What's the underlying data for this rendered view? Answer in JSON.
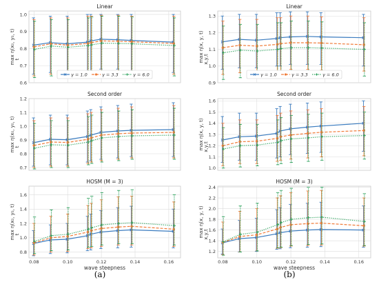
{
  "figure": {
    "label_left": "(a)",
    "label_right": "(b)"
  },
  "colors": {
    "series1": "#3a7bbf",
    "series2": "#f07c3a",
    "series3": "#2aa05a",
    "grid": "#dcdcdc",
    "frame": "#c8c8c8"
  },
  "legend_entries": [
    "γ = 1.0",
    "γ = 3.3",
    "γ = 6.0"
  ],
  "chart_data": [
    {
      "type": "line",
      "title": "Linear",
      "xlabel": "",
      "ylabel": "max η(x₀, y₀, t)",
      "ylabel_parts": {
        "main": "max η(x₀, y₀, t)",
        "sub": "t"
      },
      "xlim": [
        0.077,
        0.167
      ],
      "ylim": [
        0.6,
        1.02
      ],
      "yticks": [
        0.6,
        0.7,
        0.8,
        0.9,
        1.0
      ],
      "yticklabels": [
        "0.6",
        "0.7",
        "0.8",
        "0.9",
        "1.0"
      ],
      "xticks": [
        0.08,
        0.1,
        0.12,
        0.14,
        0.16
      ],
      "xticklabels": [],
      "grid": true,
      "legend": "bottom",
      "x": [
        0.08,
        0.09,
        0.1,
        0.112,
        0.114,
        0.12,
        0.13,
        0.138,
        0.163
      ],
      "series": [
        {
          "name": "γ = 1.0",
          "style": "solid",
          "marker": "x",
          "values": [
            0.82,
            0.835,
            0.828,
            0.838,
            0.845,
            0.855,
            0.852,
            0.848,
            0.838
          ],
          "err_lo": [
            0.65,
            0.66,
            0.66,
            0.67,
            0.67,
            0.68,
            0.68,
            0.67,
            0.66
          ],
          "err_hi": [
            0.98,
            0.99,
            0.99,
            1.0,
            1.0,
            1.0,
            1.0,
            1.0,
            1.0
          ]
        },
        {
          "name": "γ = 3.3",
          "style": "dashed",
          "marker": "o",
          "values": [
            0.81,
            0.828,
            0.82,
            0.83,
            0.835,
            0.845,
            0.843,
            0.84,
            0.83
          ],
          "err_lo": [
            0.64,
            0.65,
            0.65,
            0.66,
            0.66,
            0.67,
            0.67,
            0.66,
            0.65
          ],
          "err_hi": [
            0.97,
            0.98,
            0.98,
            0.99,
            0.99,
            0.995,
            0.995,
            0.99,
            0.99
          ]
        },
        {
          "name": "γ = 6.0",
          "style": "dotted",
          "marker": "+",
          "values": [
            0.795,
            0.815,
            0.808,
            0.818,
            0.822,
            0.832,
            0.83,
            0.828,
            0.818
          ],
          "err_lo": [
            0.63,
            0.64,
            0.64,
            0.65,
            0.65,
            0.66,
            0.66,
            0.65,
            0.64
          ],
          "err_hi": [
            0.96,
            0.97,
            0.97,
            0.98,
            0.985,
            0.99,
            0.99,
            0.985,
            0.98
          ]
        }
      ]
    },
    {
      "type": "line",
      "title": "Linear",
      "xlabel": "",
      "ylabel": "max η(x, y, t)",
      "ylabel_parts": {
        "main": "max η(x, y, t)",
        "sub": "x,y,t"
      },
      "xlim": [
        0.077,
        0.167
      ],
      "ylim": [
        0.9,
        1.33
      ],
      "yticks": [
        0.9,
        1.0,
        1.1,
        1.2,
        1.3
      ],
      "yticklabels": [
        "0.9",
        "1.0",
        "1.1",
        "1.2",
        "1.3"
      ],
      "xticks": [
        0.08,
        0.1,
        0.12,
        0.14,
        0.16
      ],
      "xticklabels": [],
      "grid": true,
      "legend": "bottom",
      "x": [
        0.08,
        0.09,
        0.1,
        0.112,
        0.114,
        0.12,
        0.13,
        0.138,
        0.163
      ],
      "series": [
        {
          "name": "γ = 1.0",
          "style": "solid",
          "marker": "x",
          "values": [
            1.145,
            1.16,
            1.155,
            1.165,
            1.17,
            1.175,
            1.178,
            1.175,
            1.17
          ],
          "err_lo": [
            0.98,
            0.99,
            0.99,
            1.0,
            1.0,
            1.01,
            1.01,
            1.01,
            1.0
          ],
          "err_hi": [
            1.3,
            1.31,
            1.31,
            1.32,
            1.32,
            1.325,
            1.325,
            1.32,
            1.31
          ]
        },
        {
          "name": "γ = 3.3",
          "style": "dashed",
          "marker": "o",
          "values": [
            1.11,
            1.125,
            1.12,
            1.13,
            1.135,
            1.14,
            1.14,
            1.138,
            1.128
          ],
          "err_lo": [
            0.95,
            0.96,
            0.96,
            0.97,
            0.97,
            0.98,
            0.98,
            0.975,
            0.97
          ],
          "err_hi": [
            1.27,
            1.28,
            1.28,
            1.29,
            1.29,
            1.3,
            1.3,
            1.295,
            1.29
          ]
        },
        {
          "name": "γ = 6.0",
          "style": "dotted",
          "marker": "+",
          "values": [
            1.08,
            1.095,
            1.09,
            1.1,
            1.105,
            1.11,
            1.11,
            1.108,
            1.1
          ],
          "err_lo": [
            0.92,
            0.93,
            0.93,
            0.94,
            0.94,
            0.95,
            0.95,
            0.945,
            0.94
          ],
          "err_hi": [
            1.24,
            1.25,
            1.25,
            1.26,
            1.26,
            1.27,
            1.27,
            1.265,
            1.26
          ]
        }
      ]
    },
    {
      "type": "line",
      "title": "Second order",
      "xlabel": "",
      "ylabel": "max η(x₀, y₀, t)",
      "ylabel_parts": {
        "main": "max η(x₀, y₀, t)",
        "sub": "t"
      },
      "xlim": [
        0.077,
        0.167
      ],
      "ylim": [
        0.68,
        1.2
      ],
      "yticks": [
        0.7,
        0.8,
        0.9,
        1.0,
        1.1,
        1.2
      ],
      "yticklabels": [
        "0.7",
        "0.8",
        "0.9",
        "1.0",
        "1.1",
        "1.2"
      ],
      "xticks": [
        0.08,
        0.1,
        0.12,
        0.14,
        0.16
      ],
      "xticklabels": [],
      "grid": true,
      "legend": "none",
      "x": [
        0.08,
        0.09,
        0.1,
        0.112,
        0.114,
        0.12,
        0.13,
        0.138,
        0.163
      ],
      "series": [
        {
          "name": "γ = 1.0",
          "style": "solid",
          "marker": "x",
          "values": [
            0.88,
            0.905,
            0.902,
            0.925,
            0.935,
            0.955,
            0.965,
            0.97,
            0.975
          ],
          "err_lo": [
            0.71,
            0.72,
            0.72,
            0.74,
            0.75,
            0.76,
            0.77,
            0.78,
            0.78
          ],
          "err_hi": [
            1.06,
            1.08,
            1.08,
            1.11,
            1.12,
            1.14,
            1.15,
            1.16,
            1.17
          ]
        },
        {
          "name": "γ = 3.3",
          "style": "dashed",
          "marker": "o",
          "values": [
            0.86,
            0.885,
            0.882,
            0.905,
            0.915,
            0.935,
            0.945,
            0.95,
            0.955
          ],
          "err_lo": [
            0.7,
            0.71,
            0.71,
            0.73,
            0.74,
            0.75,
            0.76,
            0.77,
            0.77
          ],
          "err_hi": [
            1.04,
            1.06,
            1.06,
            1.09,
            1.1,
            1.12,
            1.13,
            1.14,
            1.15
          ]
        },
        {
          "name": "γ = 6.0",
          "style": "dotted",
          "marker": "+",
          "values": [
            0.84,
            0.865,
            0.862,
            0.885,
            0.895,
            0.915,
            0.925,
            0.93,
            0.935
          ],
          "err_lo": [
            0.69,
            0.7,
            0.7,
            0.72,
            0.73,
            0.74,
            0.75,
            0.76,
            0.76
          ],
          "err_hi": [
            1.02,
            1.04,
            1.04,
            1.07,
            1.08,
            1.1,
            1.11,
            1.12,
            1.13
          ]
        }
      ]
    },
    {
      "type": "line",
      "title": "Second order",
      "xlabel": "",
      "ylabel": "max η(x, y, t)",
      "ylabel_parts": {
        "main": "max η(x, y, t)",
        "sub": "x,y,t"
      },
      "xlim": [
        0.077,
        0.167
      ],
      "ylim": [
        0.98,
        1.62
      ],
      "yticks": [
        1.0,
        1.1,
        1.2,
        1.3,
        1.4,
        1.5,
        1.6
      ],
      "yticklabels": [
        "1.0",
        "1.1",
        "1.2",
        "1.3",
        "1.4",
        "1.5",
        "1.6"
      ],
      "xticks": [
        0.08,
        0.1,
        0.12,
        0.14,
        0.16
      ],
      "xticklabels": [],
      "grid": true,
      "legend": "none",
      "x": [
        0.08,
        0.09,
        0.1,
        0.112,
        0.114,
        0.12,
        0.13,
        0.138,
        0.163
      ],
      "series": [
        {
          "name": "γ = 1.0",
          "style": "solid",
          "marker": "x",
          "values": [
            1.25,
            1.28,
            1.285,
            1.31,
            1.33,
            1.35,
            1.365,
            1.375,
            1.4
          ],
          "err_lo": [
            1.05,
            1.07,
            1.07,
            1.09,
            1.1,
            1.12,
            1.13,
            1.14,
            1.15
          ],
          "err_hi": [
            1.46,
            1.49,
            1.49,
            1.53,
            1.55,
            1.57,
            1.58,
            1.59,
            1.6
          ]
        },
        {
          "name": "γ = 3.3",
          "style": "dashed",
          "marker": "o",
          "values": [
            1.2,
            1.235,
            1.24,
            1.265,
            1.28,
            1.295,
            1.31,
            1.32,
            1.335
          ],
          "err_lo": [
            1.02,
            1.04,
            1.04,
            1.06,
            1.07,
            1.08,
            1.09,
            1.1,
            1.11
          ],
          "err_hi": [
            1.4,
            1.43,
            1.43,
            1.47,
            1.49,
            1.51,
            1.52,
            1.53,
            1.55
          ]
        },
        {
          "name": "γ = 6.0",
          "style": "dotted",
          "marker": "+",
          "values": [
            1.17,
            1.2,
            1.205,
            1.23,
            1.245,
            1.26,
            1.27,
            1.28,
            1.29
          ],
          "err_lo": [
            1.0,
            1.01,
            1.02,
            1.03,
            1.04,
            1.05,
            1.06,
            1.07,
            1.08
          ],
          "err_hi": [
            1.36,
            1.39,
            1.39,
            1.43,
            1.45,
            1.47,
            1.48,
            1.49,
            1.5
          ]
        }
      ]
    },
    {
      "type": "line",
      "title": "HOSM (M = 3)",
      "xlabel": "wave steepness",
      "ylabel": "max η(x₀, y₀, t)",
      "ylabel_parts": {
        "main": "max η(x₀, y₀, t)",
        "sub": "t"
      },
      "xlim": [
        0.077,
        0.167
      ],
      "ylim": [
        0.72,
        1.72
      ],
      "yticks": [
        0.8,
        1.0,
        1.2,
        1.4,
        1.6
      ],
      "yticklabels": [
        "0.8",
        "1.0",
        "1.2",
        "1.4",
        "1.6"
      ],
      "xticks": [
        0.08,
        0.1,
        0.12,
        0.14,
        0.16
      ],
      "xticklabels": [
        "0.08",
        "0.10",
        "0.12",
        "0.14",
        "0.16"
      ],
      "grid": true,
      "legend": "none",
      "x": [
        0.08,
        0.09,
        0.1,
        0.112,
        0.114,
        0.12,
        0.13,
        0.138,
        0.163
      ],
      "series": [
        {
          "name": "γ = 1.0",
          "style": "solid",
          "marker": "x",
          "values": [
            0.92,
            0.97,
            0.98,
            1.03,
            1.05,
            1.08,
            1.1,
            1.11,
            1.09
          ],
          "err_lo": [
            0.75,
            0.78,
            0.79,
            0.82,
            0.83,
            0.85,
            0.86,
            0.87,
            0.86
          ],
          "err_hi": [
            1.1,
            1.18,
            1.2,
            1.3,
            1.33,
            1.38,
            1.42,
            1.44,
            1.4
          ]
        },
        {
          "name": "γ = 3.3",
          "style": "dashed",
          "marker": "o",
          "values": [
            0.93,
            1.0,
            1.02,
            1.08,
            1.1,
            1.13,
            1.15,
            1.16,
            1.12
          ],
          "err_lo": [
            0.76,
            0.8,
            0.81,
            0.85,
            0.86,
            0.88,
            0.9,
            0.9,
            0.88
          ],
          "err_hi": [
            1.2,
            1.3,
            1.33,
            1.45,
            1.48,
            1.53,
            1.57,
            1.58,
            1.5
          ]
        },
        {
          "name": "γ = 6.0",
          "style": "dotted",
          "marker": "+",
          "values": [
            0.95,
            1.03,
            1.05,
            1.12,
            1.14,
            1.18,
            1.2,
            1.21,
            1.17
          ],
          "err_lo": [
            0.78,
            0.82,
            0.83,
            0.87,
            0.88,
            0.9,
            0.92,
            0.92,
            0.9
          ],
          "err_hi": [
            1.29,
            1.39,
            1.42,
            1.55,
            1.58,
            1.63,
            1.66,
            1.67,
            1.6
          ]
        }
      ]
    },
    {
      "type": "line",
      "title": "HOSM (M = 3)",
      "xlabel": "wave steepness",
      "ylabel": "max η(x, y, t)",
      "ylabel_parts": {
        "main": "max η(x, y, t)",
        "sub": "x,y,t"
      },
      "xlim": [
        0.077,
        0.167
      ],
      "ylim": [
        1.08,
        2.42
      ],
      "yticks": [
        1.2,
        1.4,
        1.6,
        1.8,
        2.0,
        2.2,
        2.4
      ],
      "yticklabels": [
        "1.2",
        "1.4",
        "1.6",
        "1.8",
        "2.0",
        "2.2",
        "2.4"
      ],
      "xticks": [
        0.08,
        0.1,
        0.12,
        0.14,
        0.16
      ],
      "xticklabels": [
        "0.08",
        "0.10",
        "0.12",
        "0.14",
        "0.16"
      ],
      "grid": true,
      "legend": "none",
      "x": [
        0.08,
        0.09,
        0.1,
        0.112,
        0.114,
        0.12,
        0.13,
        0.138,
        0.163
      ],
      "series": [
        {
          "name": "γ = 1.0",
          "style": "solid",
          "marker": "x",
          "values": [
            1.36,
            1.44,
            1.46,
            1.53,
            1.55,
            1.58,
            1.6,
            1.61,
            1.6
          ],
          "err_lo": [
            1.15,
            1.19,
            1.2,
            1.24,
            1.25,
            1.27,
            1.28,
            1.29,
            1.28
          ],
          "err_hi": [
            1.62,
            1.78,
            1.82,
            1.98,
            2.02,
            2.08,
            2.1,
            2.12,
            2.05
          ]
        },
        {
          "name": "γ = 3.3",
          "style": "dashed",
          "marker": "o",
          "values": [
            1.37,
            1.48,
            1.51,
            1.62,
            1.65,
            1.7,
            1.72,
            1.73,
            1.68
          ],
          "err_lo": [
            1.14,
            1.19,
            1.21,
            1.26,
            1.27,
            1.3,
            1.31,
            1.32,
            1.3
          ],
          "err_hi": [
            1.75,
            1.95,
            2.0,
            2.2,
            2.24,
            2.3,
            2.33,
            2.34,
            2.2
          ]
        },
        {
          "name": "γ = 6.0",
          "style": "dotted",
          "marker": "+",
          "values": [
            1.38,
            1.52,
            1.56,
            1.7,
            1.74,
            1.8,
            1.83,
            1.84,
            1.76
          ],
          "err_lo": [
            1.13,
            1.19,
            1.21,
            1.27,
            1.28,
            1.31,
            1.33,
            1.34,
            1.31
          ],
          "err_hi": [
            1.85,
            2.05,
            2.1,
            2.3,
            2.34,
            2.38,
            2.4,
            2.4,
            2.28
          ]
        }
      ]
    }
  ]
}
